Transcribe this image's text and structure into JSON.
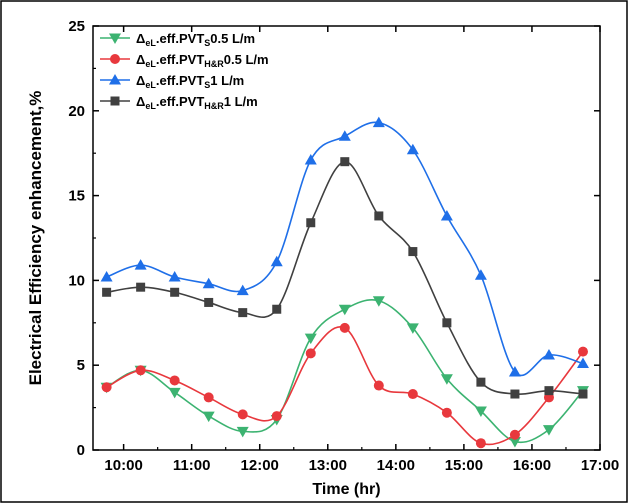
{
  "chart_data": {
    "type": "line",
    "title": "",
    "xlabel": "Time (hr)",
    "ylabel": "Electrical Efficiency enhancement,%",
    "xlim": [
      9.55,
      17.0
    ],
    "ylim": [
      0,
      25
    ],
    "x_ticks": [
      10,
      11,
      12,
      13,
      14,
      15,
      16,
      17
    ],
    "x_tick_labels": [
      "10:00",
      "11:00",
      "12:00",
      "13:00",
      "14:00",
      "15:00",
      "16:00",
      "17:00"
    ],
    "y_ticks": [
      0,
      5,
      10,
      15,
      20,
      25
    ],
    "y_tick_labels": [
      "0",
      "5",
      "10",
      "15",
      "20",
      "25"
    ],
    "x": [
      9.75,
      10.25,
      10.75,
      11.25,
      11.75,
      12.25,
      12.75,
      13.25,
      13.75,
      14.25,
      14.75,
      15.25,
      15.75,
      16.25,
      16.75
    ],
    "legend_position": "top-left",
    "series": [
      {
        "name_parts": {
          "delta": "Δ",
          "sub1": "eL",
          "mid": ".eff.PVT",
          "sub2": "S",
          "tail": "0.5 L/m"
        },
        "color": "#3cb371",
        "marker": "triangle-down",
        "values": [
          3.7,
          4.7,
          3.4,
          2.0,
          1.1,
          1.8,
          6.6,
          8.3,
          8.8,
          7.2,
          4.2,
          2.3,
          0.5,
          1.2,
          3.5
        ]
      },
      {
        "name_parts": {
          "delta": "Δ",
          "sub1": "eL",
          "mid": ".eff.PVT",
          "sub2": "H&R",
          "tail": "0.5 L/m"
        },
        "color": "#e8383d",
        "marker": "circle",
        "values": [
          3.7,
          4.7,
          4.1,
          3.1,
          2.1,
          2.0,
          5.7,
          7.2,
          3.8,
          3.3,
          2.2,
          0.4,
          0.9,
          3.1,
          5.8
        ]
      },
      {
        "name_parts": {
          "delta": "Δ",
          "sub1": "eL",
          "mid": ".eff.PVT",
          "sub2": "S",
          "tail": "1 L/m"
        },
        "color": "#1f6fe8",
        "marker": "triangle-up",
        "values": [
          10.2,
          10.9,
          10.2,
          9.8,
          9.4,
          11.1,
          17.1,
          18.5,
          19.3,
          17.7,
          13.8,
          10.3,
          4.6,
          5.6,
          5.1
        ]
      },
      {
        "name_parts": {
          "delta": "Δ",
          "sub1": "eL",
          "mid": ".eff.PVT",
          "sub2": "H&R",
          "tail": "1 L/m"
        },
        "color": "#404040",
        "marker": "square",
        "values": [
          9.3,
          9.6,
          9.3,
          8.7,
          8.1,
          8.3,
          13.4,
          17.0,
          13.8,
          11.7,
          7.5,
          4.0,
          3.3,
          3.5,
          3.3
        ]
      }
    ]
  }
}
